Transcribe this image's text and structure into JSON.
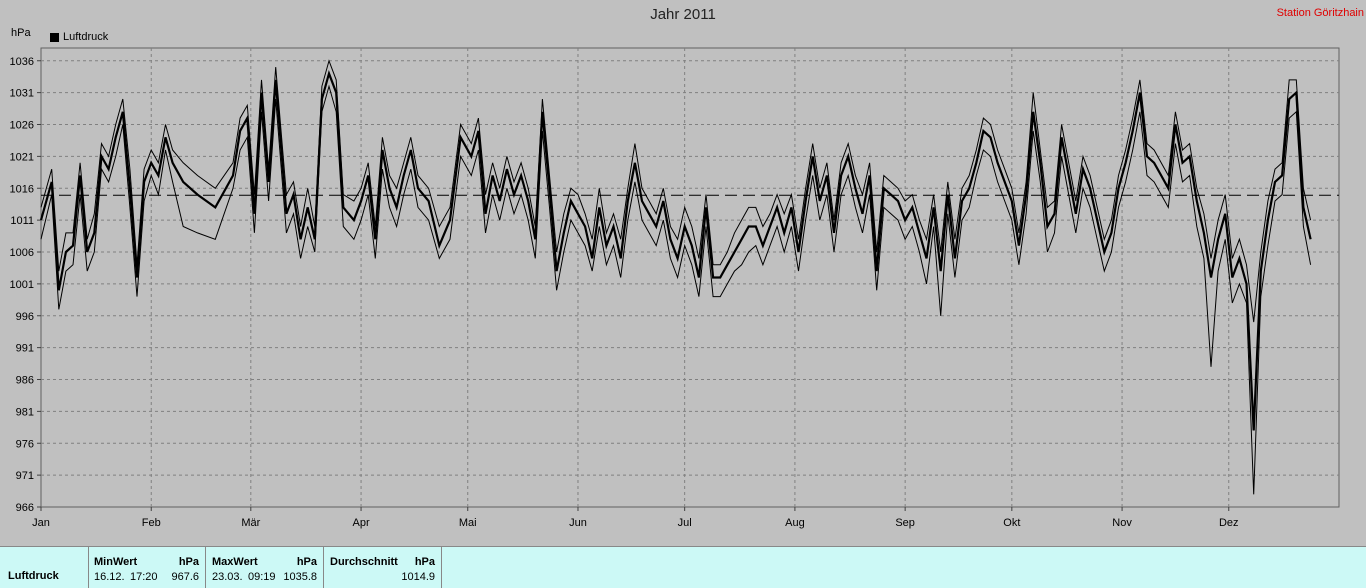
{
  "title": "Jahr 2011",
  "station": "Station Göritzhain",
  "y_unit": "hPa",
  "legend": "Luftdruck",
  "colors": {
    "background": "#c0c0c0",
    "line": "#000000",
    "grid": "#808080",
    "station_text": "#e00000",
    "panel": "#ccf9f6"
  },
  "stats": {
    "name": "Luftdruck",
    "min": {
      "header": "MinWert",
      "unit": "hPa",
      "date": "16.12.",
      "time": "17:20",
      "value": "967.6"
    },
    "max": {
      "header": "MaxWert",
      "unit": "hPa",
      "date": "23.03.",
      "time": "09:19",
      "value": "1035.8"
    },
    "avg": {
      "header": "Durchschnitt",
      "unit": "hPa",
      "value": "1014.9"
    }
  },
  "chart_data": {
    "type": "line",
    "title": "Jahr 2011",
    "ylabel": "hPa",
    "ylim": [
      966,
      1038
    ],
    "yticks": [
      966,
      971,
      976,
      981,
      986,
      991,
      996,
      1001,
      1006,
      1011,
      1016,
      1021,
      1026,
      1031,
      1036
    ],
    "xlim": [
      1,
      366
    ],
    "xticks": [
      {
        "label": "Jan",
        "day": 1
      },
      {
        "label": "Feb",
        "day": 32
      },
      {
        "label": "Mär",
        "day": 60
      },
      {
        "label": "Apr",
        "day": 91
      },
      {
        "label": "Mai",
        "day": 121
      },
      {
        "label": "Jun",
        "day": 152
      },
      {
        "label": "Jul",
        "day": 182
      },
      {
        "label": "Aug",
        "day": 213
      },
      {
        "label": "Sep",
        "day": 244
      },
      {
        "label": "Okt",
        "day": 274
      },
      {
        "label": "Nov",
        "day": 305
      },
      {
        "label": "Dez",
        "day": 335
      }
    ],
    "grid": true,
    "legend_position": "top-left",
    "average_line": 1014.9,
    "series": [
      {
        "name": "Luftdruck",
        "day": [
          1,
          4,
          6,
          8,
          10,
          12,
          14,
          16,
          18,
          20,
          22,
          24,
          26,
          28,
          30,
          32,
          34,
          36,
          38,
          41,
          45,
          50,
          55,
          57,
          59,
          61,
          63,
          65,
          67,
          70,
          72,
          74,
          76,
          78,
          80,
          82,
          84,
          86,
          89,
          91,
          93,
          95,
          97,
          99,
          101,
          103,
          105,
          107,
          110,
          113,
          116,
          119,
          122,
          124,
          126,
          128,
          130,
          132,
          134,
          136,
          138,
          140,
          142,
          144,
          146,
          148,
          150,
          152,
          154,
          156,
          158,
          160,
          162,
          164,
          166,
          168,
          170,
          172,
          174,
          176,
          178,
          180,
          182,
          184,
          186,
          188,
          190,
          192,
          194,
          196,
          198,
          200,
          202,
          204,
          206,
          208,
          210,
          212,
          214,
          216,
          218,
          220,
          222,
          224,
          226,
          228,
          230,
          232,
          234,
          236,
          238,
          240,
          242,
          244,
          246,
          248,
          250,
          252,
          254,
          256,
          258,
          260,
          262,
          264,
          266,
          268,
          270,
          272,
          274,
          276,
          278,
          280,
          282,
          284,
          286,
          288,
          290,
          292,
          294,
          296,
          298,
          300,
          302,
          304,
          306,
          308,
          310,
          312,
          314,
          316,
          318,
          320,
          322,
          324,
          326,
          328,
          330,
          332,
          334,
          336,
          338,
          340,
          342,
          344,
          346,
          348,
          350,
          352,
          354,
          356,
          358,
          360,
          362,
          364,
          366
        ],
        "mean": [
          1011,
          1017,
          1000,
          1006,
          1007,
          1018,
          1006,
          1009,
          1021,
          1019,
          1024,
          1028,
          1016,
          1002,
          1017,
          1020,
          1018,
          1024,
          1020,
          1017,
          1015,
          1013,
          1018,
          1025,
          1027,
          1012,
          1031,
          1017,
          1033,
          1012,
          1015,
          1008,
          1013,
          1008,
          1030,
          1034,
          1031,
          1013,
          1011,
          1014,
          1018,
          1008,
          1022,
          1016,
          1013,
          1018,
          1022,
          1016,
          1014,
          1007,
          1011,
          1024,
          1021,
          1025,
          1012,
          1018,
          1014,
          1019,
          1015,
          1018,
          1014,
          1008,
          1028,
          1016,
          1003,
          1009,
          1014,
          1012,
          1010,
          1005,
          1013,
          1007,
          1010,
          1005,
          1014,
          1020,
          1014,
          1012,
          1010,
          1014,
          1008,
          1005,
          1010,
          1007,
          1002,
          1013,
          1002,
          1002,
          1004,
          1006,
          1008,
          1010,
          1010,
          1007,
          1010,
          1013,
          1009,
          1013,
          1006,
          1014,
          1021,
          1014,
          1018,
          1009,
          1018,
          1021,
          1016,
          1012,
          1018,
          1003,
          1016,
          1015,
          1014,
          1011,
          1013,
          1009,
          1005,
          1013,
          1003,
          1015,
          1005,
          1014,
          1016,
          1020,
          1025,
          1024,
          1020,
          1017,
          1014,
          1007,
          1015,
          1028,
          1020,
          1010,
          1012,
          1024,
          1018,
          1012,
          1019,
          1016,
          1011,
          1006,
          1009,
          1016,
          1020,
          1025,
          1031,
          1021,
          1020,
          1018,
          1016,
          1026,
          1020,
          1021,
          1014,
          1009,
          1002,
          1008,
          1012,
          1002,
          1005,
          1001,
          978,
          1003,
          1011,
          1017,
          1018,
          1030,
          1031,
          1013,
          1008
        ],
        "max": [
          1013,
          1019,
          1003,
          1009,
          1009,
          1020,
          1008,
          1012,
          1023,
          1021,
          1026,
          1030,
          1019,
          1004,
          1019,
          1022,
          1020,
          1026,
          1022,
          1020,
          1018,
          1016,
          1020,
          1027,
          1029,
          1015,
          1033,
          1019,
          1035,
          1015,
          1017,
          1010,
          1016,
          1010,
          1032,
          1036,
          1033,
          1015,
          1014,
          1016,
          1020,
          1010,
          1024,
          1018,
          1016,
          1020,
          1024,
          1018,
          1016,
          1010,
          1013,
          1026,
          1023,
          1027,
          1015,
          1020,
          1016,
          1021,
          1017,
          1020,
          1016,
          1010,
          1030,
          1018,
          1006,
          1012,
          1016,
          1015,
          1012,
          1008,
          1016,
          1009,
          1012,
          1008,
          1016,
          1023,
          1016,
          1014,
          1012,
          1016,
          1010,
          1008,
          1013,
          1010,
          1005,
          1015,
          1004,
          1004,
          1006,
          1009,
          1011,
          1013,
          1013,
          1010,
          1012,
          1015,
          1012,
          1015,
          1008,
          1016,
          1023,
          1016,
          1020,
          1011,
          1020,
          1023,
          1018,
          1015,
          1020,
          1006,
          1018,
          1017,
          1016,
          1014,
          1015,
          1011,
          1008,
          1015,
          1006,
          1017,
          1008,
          1016,
          1018,
          1022,
          1027,
          1026,
          1022,
          1019,
          1016,
          1009,
          1017,
          1031,
          1022,
          1013,
          1014,
          1026,
          1020,
          1014,
          1021,
          1018,
          1013,
          1008,
          1011,
          1018,
          1022,
          1027,
          1033,
          1023,
          1022,
          1020,
          1018,
          1028,
          1022,
          1023,
          1016,
          1012,
          1005,
          1011,
          1015,
          1005,
          1008,
          1004,
          995,
          1006,
          1014,
          1019,
          1020,
          1033,
          1033,
          1016,
          1011
        ],
        "min": [
          1008,
          1015,
          997,
          1003,
          1004,
          1015,
          1003,
          1006,
          1019,
          1017,
          1021,
          1026,
          1013,
          999,
          1014,
          1018,
          1015,
          1022,
          1017,
          1010,
          1009,
          1008,
          1016,
          1022,
          1024,
          1009,
          1028,
          1014,
          1030,
          1009,
          1012,
          1005,
          1010,
          1006,
          1028,
          1032,
          1028,
          1010,
          1008,
          1011,
          1015,
          1005,
          1019,
          1013,
          1010,
          1015,
          1019,
          1013,
          1011,
          1005,
          1008,
          1021,
          1018,
          1022,
          1009,
          1015,
          1011,
          1016,
          1012,
          1015,
          1011,
          1005,
          1025,
          1013,
          1000,
          1006,
          1011,
          1009,
          1007,
          1003,
          1010,
          1004,
          1007,
          1002,
          1011,
          1017,
          1011,
          1009,
          1007,
          1011,
          1005,
          1002,
          1007,
          1004,
          999,
          1010,
          999,
          999,
          1001,
          1003,
          1004,
          1006,
          1007,
          1004,
          1007,
          1010,
          1006,
          1010,
          1003,
          1011,
          1018,
          1011,
          1015,
          1006,
          1015,
          1018,
          1013,
          1009,
          1015,
          1000,
          1013,
          1012,
          1011,
          1008,
          1010,
          1006,
          1001,
          1010,
          996,
          1012,
          1002,
          1011,
          1013,
          1018,
          1022,
          1021,
          1017,
          1014,
          1011,
          1004,
          1012,
          1025,
          1017,
          1006,
          1009,
          1021,
          1015,
          1009,
          1016,
          1013,
          1008,
          1003,
          1006,
          1013,
          1017,
          1022,
          1028,
          1018,
          1017,
          1015,
          1013,
          1023,
          1017,
          1018,
          1010,
          1005,
          988,
          1003,
          1008,
          998,
          1001,
          998,
          968,
          999,
          1007,
          1014,
          1015,
          1027,
          1028,
          1010,
          1004
        ]
      }
    ]
  }
}
